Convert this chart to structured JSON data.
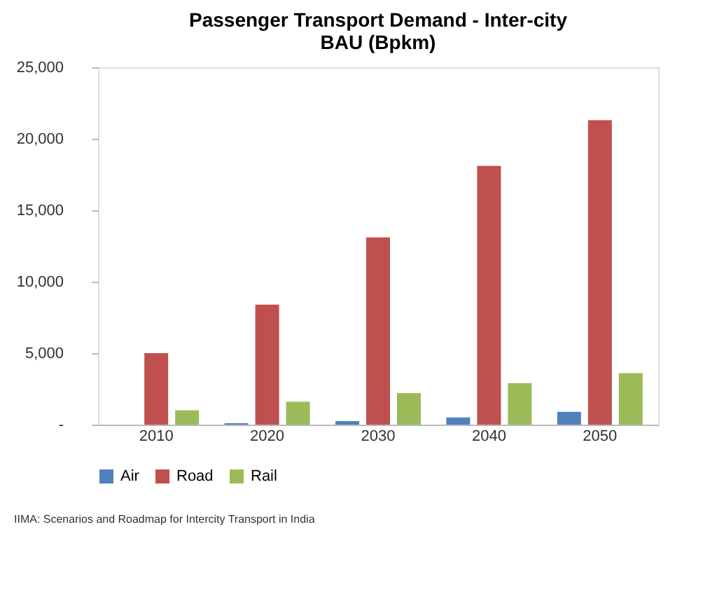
{
  "chart_data": {
    "type": "bar",
    "title": "Passenger Transport Demand  - Inter-city\nBAU (Bpkm)",
    "categories": [
      "2010",
      "2020",
      "2030",
      "2040",
      "2050"
    ],
    "series": [
      {
        "name": "Air",
        "color": "#4f81bd",
        "values": [
          null,
          100,
          250,
          500,
          900
        ]
      },
      {
        "name": "Road",
        "color": "#c0504d",
        "values": [
          5000,
          8400,
          13100,
          18100,
          21300
        ]
      },
      {
        "name": "Rail",
        "color": "#9bbb59",
        "values": [
          1000,
          1600,
          2200,
          2900,
          3600
        ]
      }
    ],
    "ylim": [
      0,
      25000
    ],
    "yticks": [
      {
        "value": 0,
        "label": "-"
      },
      {
        "value": 5000,
        "label": "5,000"
      },
      {
        "value": 10000,
        "label": "10,000"
      },
      {
        "value": 15000,
        "label": "15,000"
      },
      {
        "value": 20000,
        "label": "20,000"
      },
      {
        "value": 25000,
        "label": "25,000"
      }
    ],
    "grid": false,
    "legend": "bottom",
    "annotations": [
      "IIMA: Scenarios and Roadmap for Intercity Transport in India"
    ]
  }
}
